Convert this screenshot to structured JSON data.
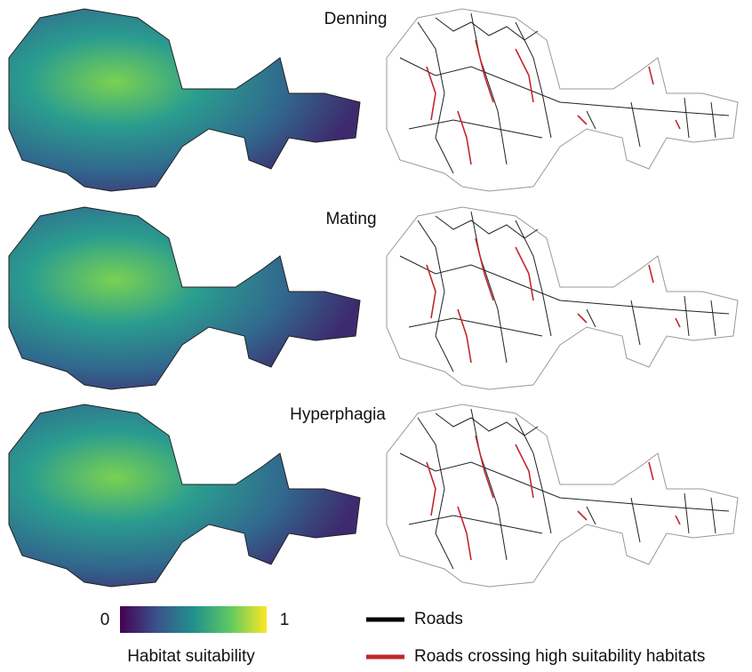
{
  "panels": [
    {
      "title": "Denning"
    },
    {
      "title": "Mating"
    },
    {
      "title": "Hyperphagia"
    }
  ],
  "colorbar": {
    "min": 0,
    "max": 1,
    "label": "Habitat suitability"
  },
  "legend": {
    "roads": "Roads",
    "crossing": "Roads crossing high suitability habitats"
  }
}
